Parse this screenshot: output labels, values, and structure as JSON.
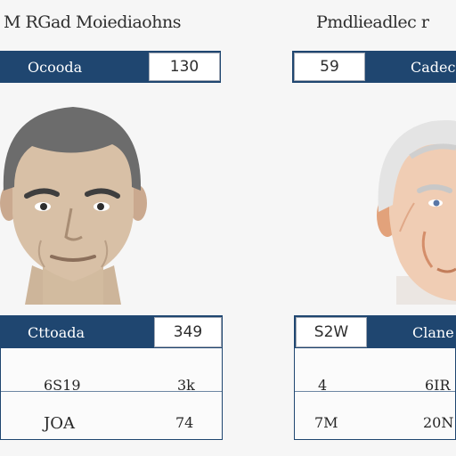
{
  "left": {
    "heading": "M RGad Moiediaohns",
    "name_bar": {
      "label": "Ocooda",
      "value": "130"
    },
    "stats": {
      "header": {
        "label": "Cttoada",
        "value": "349"
      },
      "rows": [
        {
          "label": "6S19",
          "value": "3k"
        },
        {
          "label": "JOA",
          "value": "74"
        }
      ]
    }
  },
  "right": {
    "heading": "Pmdlieadlec r",
    "name_bar": {
      "label": "Cadecc",
      "value": "59"
    },
    "stats": {
      "header": {
        "label": "Clane",
        "value": "S2W"
      },
      "rows": [
        {
          "label": "4",
          "value": "6IR"
        },
        {
          "label": "7M",
          "value": "20N"
        }
      ]
    }
  },
  "colors": {
    "bar": "#1f4670",
    "background": "#f6f6f6",
    "skin_left": "#d8c0a6",
    "skin_right": "#f0cdb4",
    "hair_left": "#6c6c6c",
    "hair_right": "#e4e4e4"
  }
}
